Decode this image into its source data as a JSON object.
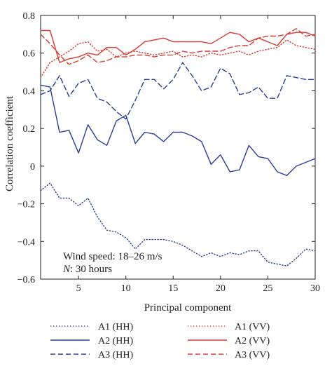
{
  "chart_data": {
    "type": "line",
    "title": "",
    "xlabel": "Principal component",
    "ylabel": "Correlation coefficient",
    "xlim": [
      1,
      30
    ],
    "ylim": [
      -0.6,
      0.8
    ],
    "xticks": [
      "5",
      "10",
      "15",
      "20",
      "25",
      "30"
    ],
    "yticks": [
      "0.8",
      "0.6",
      "0.4",
      "0.2",
      "0",
      "−0.2",
      "−0.4",
      "−0.6"
    ],
    "grid": false,
    "legend_position": "below plot, two columns",
    "annotations": [
      "Wind speed: 18–26 m/s",
      "N",
      ": 30 hours"
    ],
    "x": [
      1,
      2,
      3,
      4,
      5,
      6,
      7,
      8,
      9,
      10,
      11,
      12,
      13,
      14,
      15,
      16,
      17,
      18,
      19,
      20,
      21,
      22,
      23,
      24,
      25,
      26,
      27,
      28,
      29,
      30
    ],
    "series": [
      {
        "name": "A1 (HH)",
        "color": "#2a3d9a",
        "dash": "dotted",
        "values": [
          -0.13,
          -0.09,
          -0.17,
          -0.17,
          -0.21,
          -0.17,
          -0.27,
          -0.34,
          -0.35,
          -0.38,
          -0.44,
          -0.39,
          -0.39,
          -0.39,
          -0.4,
          -0.42,
          -0.45,
          -0.48,
          -0.46,
          -0.48,
          -0.46,
          -0.47,
          -0.45,
          -0.45,
          -0.51,
          -0.52,
          -0.53,
          -0.49,
          -0.44,
          -0.45
        ]
      },
      {
        "name": "A2 (HH)",
        "color": "#2a3d9a",
        "dash": "solid",
        "values": [
          0.43,
          0.42,
          0.18,
          0.19,
          0.07,
          0.22,
          0.14,
          0.11,
          0.24,
          0.27,
          0.12,
          0.18,
          0.17,
          0.13,
          0.18,
          0.18,
          0.16,
          0.13,
          0.01,
          0.06,
          -0.03,
          -0.02,
          0.11,
          0.05,
          0.04,
          -0.03,
          -0.05,
          0.0,
          0.02,
          0.04
        ]
      },
      {
        "name": "A3 (HH)",
        "color": "#2a3d9a",
        "dash": "dashed",
        "values": [
          0.38,
          0.4,
          0.48,
          0.37,
          0.44,
          0.46,
          0.36,
          0.34,
          0.29,
          0.25,
          0.35,
          0.46,
          0.46,
          0.41,
          0.46,
          0.55,
          0.48,
          0.4,
          0.42,
          0.52,
          0.49,
          0.38,
          0.39,
          0.42,
          0.36,
          0.36,
          0.48,
          0.47,
          0.46,
          0.46
        ]
      },
      {
        "name": "A1 (VV)",
        "color": "#d93a32",
        "dash": "dotted",
        "values": [
          0.47,
          0.55,
          0.58,
          0.61,
          0.65,
          0.66,
          0.61,
          0.62,
          0.58,
          0.6,
          0.61,
          0.6,
          0.59,
          0.6,
          0.61,
          0.58,
          0.59,
          0.58,
          0.6,
          0.59,
          0.6,
          0.61,
          0.59,
          0.61,
          0.62,
          0.63,
          0.67,
          0.64,
          0.63,
          0.62
        ]
      },
      {
        "name": "A2 (VV)",
        "color": "#d93a32",
        "dash": "solid",
        "values": [
          0.72,
          0.72,
          0.55,
          0.57,
          0.58,
          0.6,
          0.59,
          0.63,
          0.63,
          0.59,
          0.62,
          0.66,
          0.67,
          0.68,
          0.66,
          0.66,
          0.66,
          0.66,
          0.65,
          0.68,
          0.71,
          0.7,
          0.66,
          0.68,
          0.66,
          0.64,
          0.7,
          0.71,
          0.71,
          0.69
        ]
      },
      {
        "name": "A3 (VV)",
        "color": "#d93a32",
        "dash": "dashed",
        "values": [
          0.7,
          0.65,
          0.59,
          0.54,
          0.56,
          0.59,
          0.55,
          0.56,
          0.58,
          0.58,
          0.59,
          0.59,
          0.58,
          0.59,
          0.59,
          0.61,
          0.6,
          0.61,
          0.61,
          0.61,
          0.63,
          0.64,
          0.64,
          0.68,
          0.69,
          0.69,
          0.7,
          0.73,
          0.69,
          0.7
        ]
      }
    ]
  }
}
